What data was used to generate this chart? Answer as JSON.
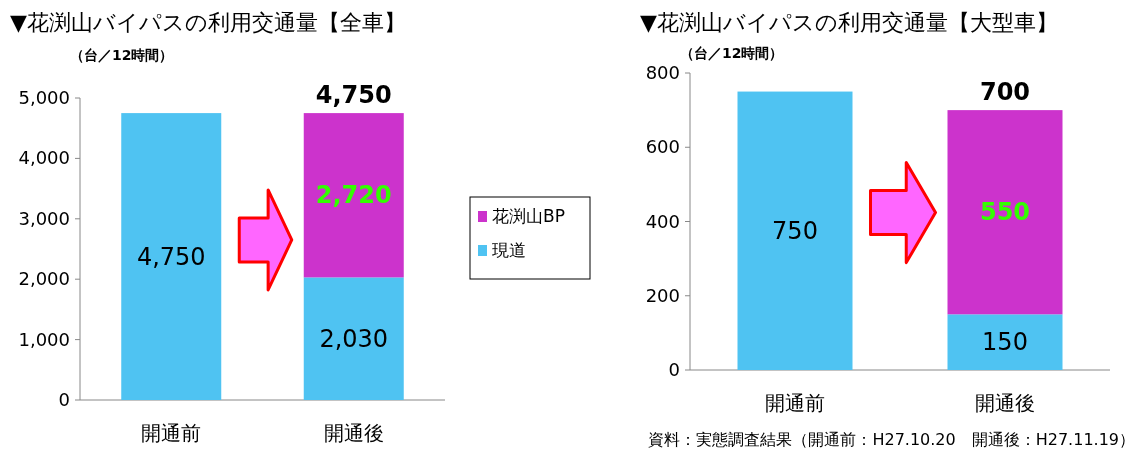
{
  "chart_data": [
    {
      "type": "bar",
      "stacked": true,
      "title": "▼花渕山バイパスの利用交通量【全車】",
      "ylabel": "（台／12時間）",
      "categories": [
        "開通前",
        "開通後"
      ],
      "series": [
        {
          "name": "現道",
          "color": "#4fc3f2",
          "values": [
            4750,
            2030
          ],
          "value_labels": [
            "4,750",
            "2,030"
          ]
        },
        {
          "name": "花渕山BP",
          "color": "#cc33cc",
          "values": [
            null,
            2720
          ],
          "value_labels": [
            null,
            "2,720"
          ]
        }
      ],
      "totals": [
        null,
        "4,750"
      ],
      "ylim": [
        0,
        5000
      ],
      "yticks": [
        {
          "value": 0,
          "label": "0"
        },
        {
          "value": 1000,
          "label": "1,000"
        },
        {
          "value": 2000,
          "label": "2,000"
        },
        {
          "value": 3000,
          "label": "3,000"
        },
        {
          "value": 4000,
          "label": "4,000"
        },
        {
          "value": 5000,
          "label": "5,000"
        }
      ],
      "legend": "right"
    },
    {
      "type": "bar",
      "stacked": true,
      "title": "▼花渕山バイパスの利用交通量【大型車】",
      "ylabel": "（台／12時間）",
      "categories": [
        "開通前",
        "開通後"
      ],
      "series": [
        {
          "color": "#4fc3f2",
          "values": [
            750,
            150
          ],
          "value_labels": [
            "750",
            "150"
          ]
        },
        {
          "color": "#cc33cc",
          "values": [
            null,
            550
          ],
          "value_labels": [
            null,
            "550"
          ]
        }
      ],
      "totals": [
        null,
        "700"
      ],
      "ylim": [
        0,
        800
      ],
      "yticks": [
        0,
        200,
        400,
        600,
        800
      ],
      "annotations": [
        "資料：実態調査結果（開通前：H27.10.20　開通後：H27.11.19）"
      ]
    }
  ]
}
